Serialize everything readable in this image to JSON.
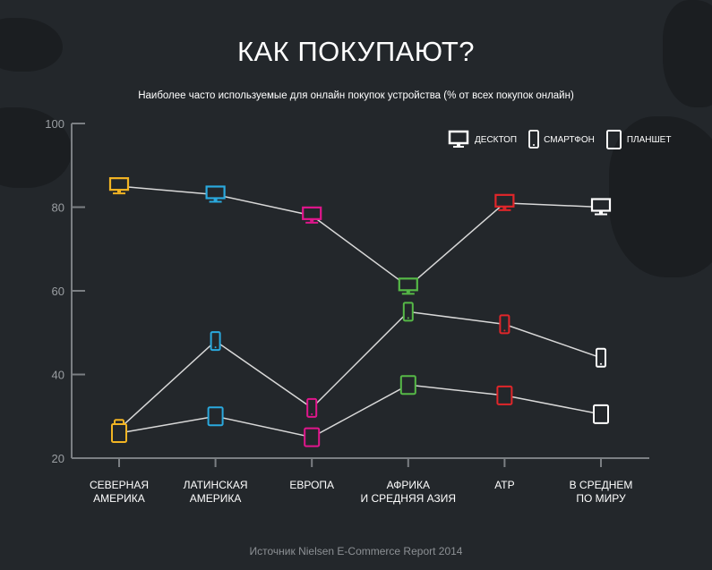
{
  "title": "КАК ПОКУПАЮТ?",
  "subtitle": "Наиболее часто используемые для онлайн покупок устройства (% от всех покупок онлайн)",
  "source": "Источник Nielsen E-Commerce Report 2014",
  "legend": [
    {
      "label": "ДЕСКТОП",
      "icon": "desktop-icon"
    },
    {
      "label": "СМАРТФОН",
      "icon": "smartphone-icon"
    },
    {
      "label": "ПЛАНШЕТ",
      "icon": "tablet-icon"
    }
  ],
  "chart_data": {
    "type": "line",
    "title": "КАК ПОКУПАЮТ?",
    "subtitle": "Наиболее часто используемые для онлайн покупок устройства (% от всех покупок онлайн)",
    "categories": [
      [
        "СЕВЕРНАЯ",
        "АМЕРИКА"
      ],
      [
        "ЛАТИНСКАЯ",
        "АМЕРИКА"
      ],
      [
        "ЕВРОПА"
      ],
      [
        "АФРИКА",
        "И СРЕДНЯЯ АЗИЯ"
      ],
      [
        "АТР"
      ],
      [
        "В СРЕДНЕМ",
        "ПО МИРУ"
      ]
    ],
    "category_colors": [
      "#f2b423",
      "#2aa9de",
      "#e0168c",
      "#56b947",
      "#e0262a",
      "#ffffff"
    ],
    "ylim": [
      20,
      100
    ],
    "yticks": [
      20,
      40,
      60,
      80,
      100
    ],
    "grid": false,
    "legend_position": "top-right",
    "series": [
      {
        "name": "ДЕСКТОП",
        "marker": "desktop",
        "values": [
          85,
          83,
          78,
          61,
          81,
          80
        ]
      },
      {
        "name": "СМАРТФОН",
        "marker": "smartphone",
        "values": [
          27,
          48,
          32,
          55,
          52,
          44
        ]
      },
      {
        "name": "ПЛАНШЕТ",
        "marker": "tablet",
        "values": [
          26,
          30,
          25,
          37.5,
          35,
          30.5
        ]
      }
    ]
  }
}
